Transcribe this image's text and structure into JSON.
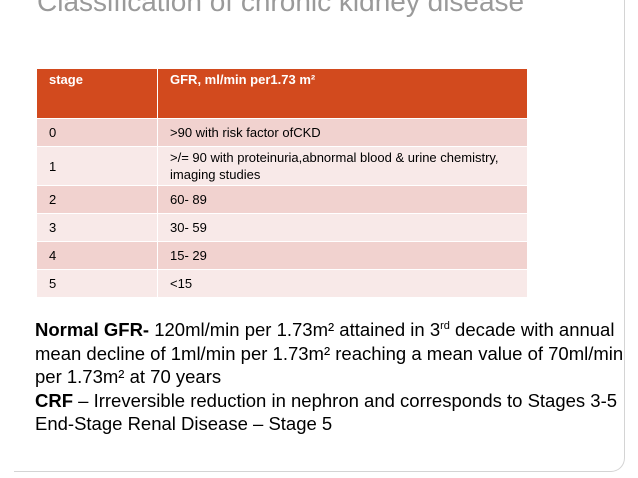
{
  "slide": {
    "title": "Classification of chronic kidney disease"
  },
  "table": {
    "headers": [
      "stage",
      "GFR, ml/min per1.73 m²"
    ],
    "rows": [
      [
        "0",
        " >90 with risk factor ofCKD"
      ],
      [
        "1",
        ">/= 90 with proteinuria,abnormal blood & urine chemistry, imaging studies"
      ],
      [
        "2",
        "60- 89"
      ],
      [
        "3",
        "30- 59"
      ],
      [
        "4",
        "15- 29"
      ],
      [
        "5",
        "<15"
      ]
    ]
  },
  "notes": {
    "normal_label": "Normal GFR-",
    "normal_text_a": " 120ml/min per 1.73m² attained in 3",
    "normal_sup": "rd",
    "normal_text_b": " decade with annual mean decline of 1ml/min per 1.73m² reaching a mean value of 70ml/min per 1.73m² at 70 years",
    "crf_label": "CRF",
    "crf_text": " – Irreversible reduction in nephron and corresponds to Stages 3-5",
    "esrd_text": "End-Stage Renal Disease – Stage 5"
  }
}
